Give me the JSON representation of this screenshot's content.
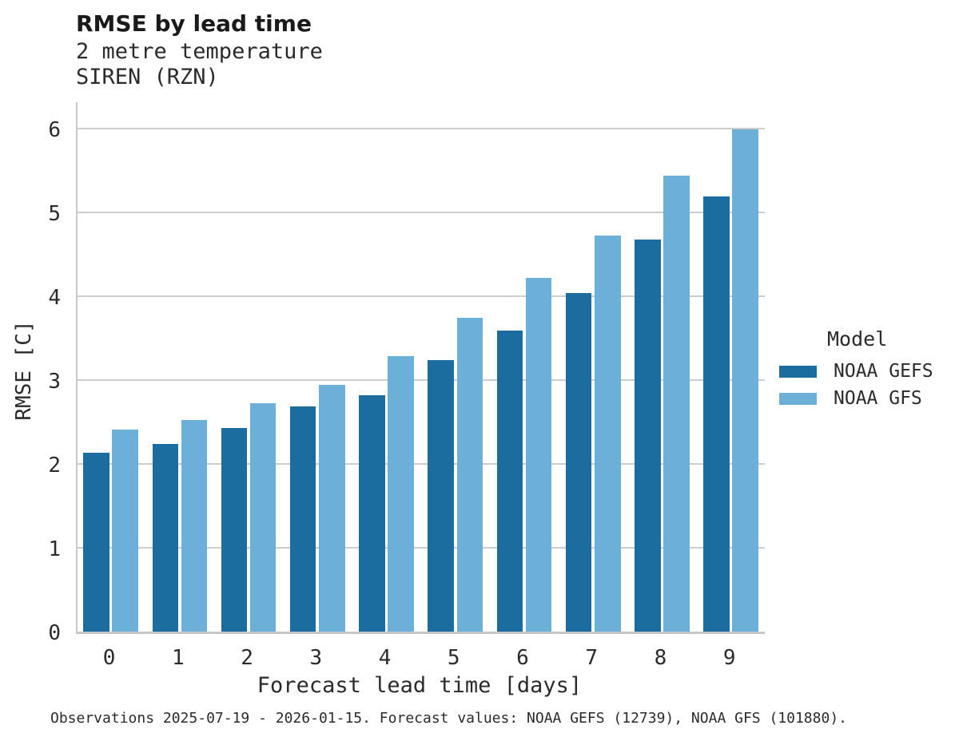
{
  "header": {
    "title": "RMSE by lead time",
    "subtitle_line1": "2 metre temperature",
    "subtitle_line2": "SIREN (RZN)"
  },
  "chart_data": {
    "type": "bar",
    "title": "RMSE by lead time",
    "subtitle": [
      "2 metre temperature",
      "SIREN (RZN)"
    ],
    "categories": [
      "0",
      "1",
      "2",
      "3",
      "4",
      "5",
      "6",
      "7",
      "8",
      "9"
    ],
    "series": [
      {
        "name": "NOAA GEFS",
        "color": "#1a6d9e",
        "values": [
          2.13,
          2.24,
          2.43,
          2.69,
          2.82,
          3.24,
          3.59,
          4.04,
          4.68,
          5.19
        ]
      },
      {
        "name": "NOAA GFS",
        "color": "#6cb0da",
        "values": [
          2.41,
          2.52,
          2.72,
          2.94,
          3.29,
          3.74,
          4.22,
          4.72,
          5.44,
          5.99
        ]
      }
    ],
    "xlabel": "Forecast lead time [days]",
    "ylabel": "RMSE [C]",
    "ylim": [
      0,
      6.31
    ],
    "yticks": [
      0,
      1,
      2,
      3,
      4,
      5,
      6
    ],
    "grid": "horizontal-only",
    "legend_title": "Model",
    "legend_position": "right"
  },
  "footer": {
    "caption": "Observations 2025-07-19 - 2026-01-15. Forecast values: NOAA GEFS (12739), NOAA GFS (101880)."
  },
  "colors": {
    "background": "#ffffff",
    "grid": "#cdcdcd",
    "axis_spine": "#c9c9c9",
    "title_text": "#1a1a1a",
    "text": "#2b2b2b",
    "noaa_gefs": "#1a6d9e",
    "noaa_gfs": "#6cb0da"
  }
}
